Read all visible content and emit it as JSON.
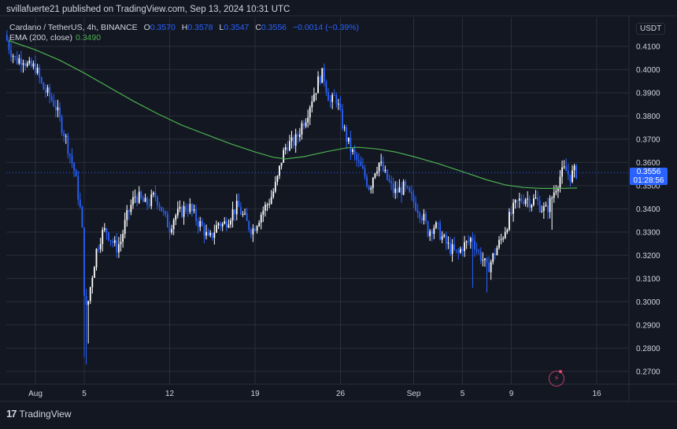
{
  "header": {
    "published_line": "svillafuerte21 published on TradingView.com, Sep 13, 2024 10:31 UTC"
  },
  "legend": {
    "symbol": "Cardano / TetherUS, 4h, BINANCE",
    "open_label": "O",
    "open": "0.3570",
    "high_label": "H",
    "high": "0.3578",
    "low_label": "L",
    "low": "0.3547",
    "close_label": "C",
    "close": "0.3556",
    "change": "−0.0014 (−0.39%)",
    "ema_label": "EMA (200, close)",
    "ema_value": "0.3490"
  },
  "axis": {
    "currency": "USDT"
  },
  "price_tag": {
    "price": "0.3556",
    "countdown": "01:28:56"
  },
  "footer": {
    "brand": "TradingView",
    "logo": "tv-logo-icon"
  },
  "colors": {
    "background": "#131722",
    "grid": "#2a2e39",
    "up_candle": "#ffffff",
    "down_candle": "#2962ff",
    "ema_line": "#4caf50",
    "accent": "#2962ff"
  },
  "chart_data": {
    "type": "candlestick",
    "title": "Cardano / TetherUS, 4h, BINANCE",
    "xlabel": "",
    "ylabel": "",
    "ylim": [
      0.2645,
      0.4225
    ],
    "y_ticks": [
      "0.4100",
      "0.4000",
      "0.3900",
      "0.3800",
      "0.3700",
      "0.3600",
      "0.3500",
      "0.3400",
      "0.3300",
      "0.3200",
      "0.3100",
      "0.3000",
      "0.2900",
      "0.2800",
      "0.2700"
    ],
    "x_tick_labels": [
      {
        "label": "Aug",
        "day": 1
      },
      {
        "label": "5",
        "day": 5
      },
      {
        "label": "12",
        "day": 12
      },
      {
        "label": "19",
        "day": 19
      },
      {
        "label": "26",
        "day": 26
      },
      {
        "label": "Sep",
        "day": 32
      },
      {
        "label": "5",
        "day": 36
      },
      {
        "label": "9",
        "day": 40
      },
      {
        "label": "16",
        "day": 47
      }
    ],
    "grid": true,
    "last_price": 0.3556,
    "price_path": [
      [
        -1.5,
        0.415
      ],
      [
        -1.1,
        0.409
      ],
      [
        -0.6,
        0.404
      ],
      [
        0.0,
        0.405
      ],
      [
        0.4,
        0.401
      ],
      [
        1.0,
        0.401
      ],
      [
        1.6,
        0.392
      ],
      [
        2.1,
        0.389
      ],
      [
        2.6,
        0.385
      ],
      [
        3.0,
        0.378
      ],
      [
        3.4,
        0.372
      ],
      [
        3.8,
        0.364
      ],
      [
        4.2,
        0.356
      ],
      [
        4.5,
        0.346
      ],
      [
        4.8,
        0.335
      ],
      [
        5.0,
        0.305
      ],
      [
        5.2,
        0.295
      ],
      [
        5.4,
        0.303
      ],
      [
        5.7,
        0.313
      ],
      [
        6.0,
        0.322
      ],
      [
        6.4,
        0.329
      ],
      [
        6.8,
        0.331
      ],
      [
        7.2,
        0.327
      ],
      [
        7.6,
        0.323
      ],
      [
        8.0,
        0.326
      ],
      [
        8.4,
        0.335
      ],
      [
        8.8,
        0.341
      ],
      [
        9.2,
        0.346
      ],
      [
        9.6,
        0.344
      ],
      [
        10.0,
        0.342
      ],
      [
        10.4,
        0.343
      ],
      [
        10.8,
        0.346
      ],
      [
        11.2,
        0.342
      ],
      [
        11.6,
        0.336
      ],
      [
        12.0,
        0.332
      ],
      [
        12.4,
        0.337
      ],
      [
        12.8,
        0.338
      ],
      [
        13.2,
        0.34
      ],
      [
        13.6,
        0.341
      ],
      [
        14.0,
        0.337
      ],
      [
        14.4,
        0.334
      ],
      [
        14.8,
        0.331
      ],
      [
        15.2,
        0.326
      ],
      [
        15.6,
        0.33
      ],
      [
        16.0,
        0.334
      ],
      [
        16.4,
        0.333
      ],
      [
        16.8,
        0.336
      ],
      [
        17.2,
        0.339
      ],
      [
        17.6,
        0.341
      ],
      [
        18.0,
        0.337
      ],
      [
        18.4,
        0.333
      ],
      [
        18.8,
        0.331
      ],
      [
        19.2,
        0.335
      ],
      [
        19.6,
        0.339
      ],
      [
        20.0,
        0.342
      ],
      [
        20.4,
        0.346
      ],
      [
        20.8,
        0.352
      ],
      [
        21.2,
        0.362
      ],
      [
        21.6,
        0.368
      ],
      [
        22.0,
        0.368
      ],
      [
        22.4,
        0.37
      ],
      [
        22.8,
        0.376
      ],
      [
        23.2,
        0.38
      ],
      [
        23.6,
        0.387
      ],
      [
        24.0,
        0.392
      ],
      [
        24.3,
        0.397
      ],
      [
        24.6,
        0.398
      ],
      [
        24.9,
        0.391
      ],
      [
        25.2,
        0.385
      ],
      [
        25.6,
        0.389
      ],
      [
        26.0,
        0.38
      ],
      [
        26.4,
        0.372
      ],
      [
        26.8,
        0.366
      ],
      [
        27.2,
        0.362
      ],
      [
        27.6,
        0.358
      ],
      [
        28.0,
        0.354
      ],
      [
        28.4,
        0.349
      ],
      [
        28.8,
        0.357
      ],
      [
        29.2,
        0.36
      ],
      [
        29.6,
        0.355
      ],
      [
        30.0,
        0.351
      ],
      [
        30.4,
        0.347
      ],
      [
        30.8,
        0.348
      ],
      [
        31.2,
        0.349
      ],
      [
        31.6,
        0.346
      ],
      [
        32.0,
        0.343
      ],
      [
        32.4,
        0.34
      ],
      [
        32.8,
        0.336
      ],
      [
        33.2,
        0.33
      ],
      [
        33.6,
        0.333
      ],
      [
        34.0,
        0.331
      ],
      [
        34.4,
        0.327
      ],
      [
        34.8,
        0.324
      ],
      [
        35.2,
        0.322
      ],
      [
        35.6,
        0.32
      ],
      [
        36.0,
        0.324
      ],
      [
        36.4,
        0.325
      ],
      [
        36.8,
        0.328
      ],
      [
        37.2,
        0.322
      ],
      [
        37.6,
        0.319
      ],
      [
        38.0,
        0.314
      ],
      [
        38.4,
        0.318
      ],
      [
        38.8,
        0.323
      ],
      [
        39.2,
        0.327
      ],
      [
        39.6,
        0.333
      ],
      [
        40.0,
        0.338
      ],
      [
        40.4,
        0.342
      ],
      [
        40.8,
        0.344
      ],
      [
        41.2,
        0.345
      ],
      [
        41.6,
        0.343
      ],
      [
        42.0,
        0.344
      ],
      [
        42.4,
        0.341
      ],
      [
        42.8,
        0.339
      ],
      [
        43.2,
        0.343
      ],
      [
        43.6,
        0.349
      ],
      [
        44.0,
        0.354
      ],
      [
        44.4,
        0.357
      ],
      [
        44.8,
        0.354
      ],
      [
        45.2,
        0.356
      ],
      [
        45.4,
        0.3556
      ]
    ],
    "series": [
      {
        "name": "EMA (200, close)",
        "color": "#4caf50",
        "points": [
          [
            -1.2,
            0.4125
          ],
          [
            1.0,
            0.4085
          ],
          [
            3.0,
            0.404
          ],
          [
            5.0,
            0.3985
          ],
          [
            7.0,
            0.3925
          ],
          [
            9.0,
            0.3865
          ],
          [
            11.0,
            0.381
          ],
          [
            13.0,
            0.376
          ],
          [
            15.0,
            0.372
          ],
          [
            17.0,
            0.368
          ],
          [
            19.0,
            0.3645
          ],
          [
            20.5,
            0.3622
          ],
          [
            21.5,
            0.3615
          ],
          [
            23.0,
            0.3625
          ],
          [
            25.0,
            0.3648
          ],
          [
            26.5,
            0.3663
          ],
          [
            27.5,
            0.3665
          ],
          [
            29.0,
            0.3658
          ],
          [
            30.5,
            0.3645
          ],
          [
            32.0,
            0.3625
          ],
          [
            34.0,
            0.3595
          ],
          [
            36.0,
            0.356
          ],
          [
            38.0,
            0.3525
          ],
          [
            39.5,
            0.3503
          ],
          [
            41.0,
            0.3492
          ],
          [
            42.5,
            0.3488
          ],
          [
            44.0,
            0.3488
          ],
          [
            45.4,
            0.349
          ]
        ]
      }
    ]
  }
}
